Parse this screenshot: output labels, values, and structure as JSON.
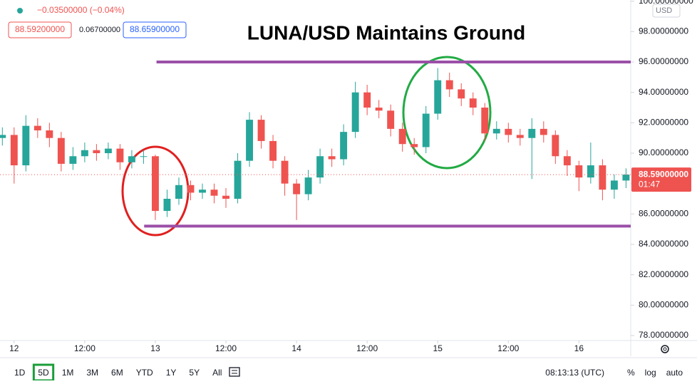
{
  "header": {
    "change": "−0.03500000 (−0.04%)",
    "bid": "88.59200000",
    "spread": "0.06700000",
    "ask": "88.65900000",
    "currency": "USD"
  },
  "toolbar": {
    "periods": [
      "1D",
      "5D",
      "1M",
      "3M",
      "6M",
      "YTD",
      "1Y",
      "5Y",
      "All"
    ],
    "active_period": 1,
    "clock": "08:13:13 (UTC)",
    "options": [
      "%",
      "log",
      "auto"
    ]
  },
  "chart_data": {
    "type": "candlestick",
    "title": "LUNA/USD Maintains Ground",
    "x": [
      -2,
      0,
      2,
      4,
      6,
      8,
      10,
      12,
      14,
      16,
      18,
      20,
      22,
      24,
      26,
      28,
      30,
      32,
      34,
      36,
      38,
      40,
      42,
      44,
      46,
      48,
      50,
      52,
      54,
      56,
      58,
      60,
      62,
      64,
      66,
      68,
      70,
      72,
      74,
      76,
      78,
      80,
      82,
      84,
      86,
      88,
      90,
      92,
      94,
      96,
      98,
      100,
      102,
      104
    ],
    "open": [
      91.0,
      91.2,
      89.2,
      91.8,
      91.5,
      91.0,
      89.3,
      89.8,
      90.2,
      90.0,
      90.3,
      89.4,
      89.8,
      89.8,
      86.2,
      87.0,
      87.9,
      87.4,
      87.6,
      87.2,
      87.0,
      89.5,
      92.2,
      90.8,
      89.5,
      88.0,
      87.3,
      88.4,
      89.8,
      89.6,
      91.4,
      94.0,
      93.0,
      92.8,
      91.6,
      90.6,
      90.4,
      92.6,
      94.8,
      94.2,
      93.6,
      93.0,
      91.3,
      91.6,
      91.2,
      91.0,
      91.6,
      91.2,
      89.8,
      89.2,
      88.4,
      89.2,
      87.6,
      88.2
    ],
    "high": [
      91.7,
      91.7,
      92.5,
      92.3,
      92.0,
      91.4,
      90.4,
      90.7,
      90.6,
      90.7,
      90.6,
      90.2,
      90.2,
      89.9,
      87.6,
      88.4,
      88.2,
      88.0,
      88.0,
      87.7,
      90.0,
      92.7,
      92.5,
      91.2,
      89.8,
      88.3,
      88.9,
      90.3,
      90.3,
      91.9,
      94.7,
      94.5,
      93.5,
      93.2,
      92.0,
      91.0,
      93.1,
      95.6,
      95.3,
      94.6,
      94.0,
      93.3,
      92.1,
      92.0,
      91.6,
      92.3,
      92.1,
      91.5,
      90.2,
      89.5,
      90.7,
      89.6,
      88.6,
      89.0
    ],
    "low": [
      90.5,
      88.0,
      88.8,
      91.0,
      90.4,
      88.8,
      88.9,
      89.4,
      89.5,
      89.6,
      88.9,
      89.0,
      89.3,
      85.6,
      85.8,
      86.6,
      86.9,
      87.0,
      86.7,
      86.4,
      86.7,
      89.1,
      90.3,
      89.0,
      87.2,
      85.6,
      86.9,
      88.0,
      89.1,
      89.2,
      91.0,
      92.5,
      92.3,
      91.1,
      90.1,
      89.9,
      90.0,
      92.2,
      93.7,
      93.1,
      92.5,
      90.8,
      90.9,
      90.7,
      90.5,
      88.3,
      90.7,
      89.3,
      88.5,
      87.5,
      88.0,
      86.9,
      87.0,
      87.7
    ],
    "close": [
      91.2,
      89.2,
      91.8,
      91.5,
      91.0,
      89.3,
      89.8,
      90.2,
      90.0,
      90.3,
      89.4,
      89.8,
      89.8,
      86.2,
      87.0,
      87.9,
      87.4,
      87.6,
      87.2,
      87.0,
      89.5,
      92.2,
      90.8,
      89.5,
      88.0,
      87.3,
      88.4,
      89.8,
      89.6,
      91.4,
      94.0,
      93.0,
      92.8,
      91.6,
      90.6,
      90.4,
      92.6,
      94.8,
      94.2,
      93.6,
      93.0,
      91.3,
      91.6,
      91.2,
      91.0,
      91.6,
      91.2,
      89.8,
      89.2,
      88.4,
      89.2,
      87.6,
      88.2,
      88.59
    ],
    "up_color": "#26a69a",
    "down_color": "#ef5350",
    "xlim": [
      -2.4,
      104.8
    ],
    "ylim": [
      77.67,
      100.08
    ],
    "xticks": [
      {
        "value": 0,
        "label": "12"
      },
      {
        "value": 12,
        "label": "12:00"
      },
      {
        "value": 24,
        "label": "13"
      },
      {
        "value": 36,
        "label": "12:00"
      },
      {
        "value": 48,
        "label": "14"
      },
      {
        "value": 60,
        "label": "12:00"
      },
      {
        "value": 72,
        "label": "15"
      },
      {
        "value": 84,
        "label": "12:00"
      },
      {
        "value": 96,
        "label": "16"
      }
    ],
    "yticks": [
      {
        "value": 78,
        "label": "78.00000000"
      },
      {
        "value": 80,
        "label": "80.00000000"
      },
      {
        "value": 82,
        "label": "82.00000000"
      },
      {
        "value": 84,
        "label": "84.00000000"
      },
      {
        "value": 86,
        "label": "86.00000000"
      },
      {
        "value": 88,
        "label": "88.00000000"
      },
      {
        "value": 90,
        "label": "90.00000000"
      },
      {
        "value": 92,
        "label": "92.00000000"
      },
      {
        "value": 94,
        "label": "94.00000000"
      },
      {
        "value": 96,
        "label": "96.00000000"
      },
      {
        "value": 98,
        "label": "98.00000000"
      },
      {
        "value": 100,
        "label": "100.00000000"
      }
    ],
    "levels": [
      {
        "value": 96.0,
        "x_start": 24.2,
        "color": "#9b4fa8"
      },
      {
        "value": 85.2,
        "x_start": 22.1,
        "color": "#9b4fa8"
      }
    ],
    "last_price": {
      "value": 88.59,
      "label": "88.59000000",
      "countdown": "01:47",
      "color": "#ef5350"
    },
    "grid": false
  }
}
